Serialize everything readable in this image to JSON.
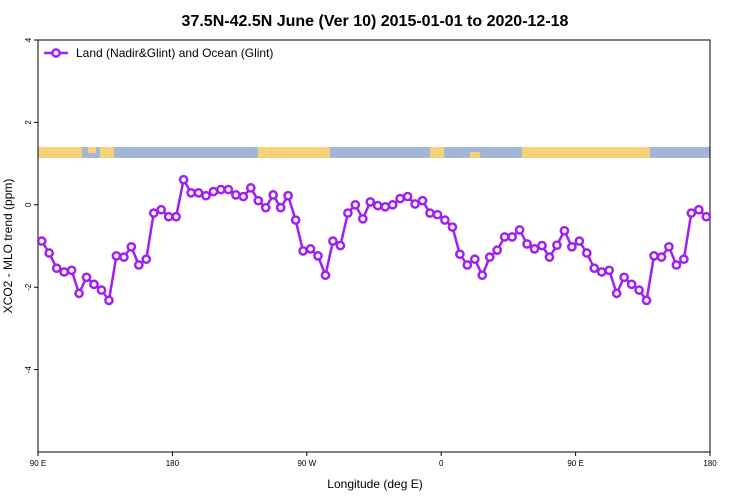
{
  "chart_data": {
    "type": "line",
    "title": "37.5N-42.5N June (Ver 10)   2015-01-01 to 2020-12-18",
    "x_label": "Longitude (deg E)",
    "y_label": "XCO2 - MLO trend (ppm)",
    "xlim": [
      90,
      540
    ],
    "xticks": [
      {
        "value": 90,
        "label": "90 E"
      },
      180,
      {
        "value": 270,
        "label": "90 W"
      },
      {
        "value": 360,
        "label": "0"
      },
      {
        "value": 450,
        "label": "90 E"
      },
      {
        "value": 540,
        "label": "180"
      }
    ],
    "ylim": [
      -6,
      4
    ],
    "yticks": [
      4,
      2,
      0,
      -2,
      -4
    ],
    "legend": "top-left",
    "x": [
      92.5,
      97.5,
      102.5,
      107.5,
      112.5,
      117.5,
      122.5,
      127.5,
      132.5,
      137.5,
      142.5,
      147.5,
      152.5,
      157.5,
      162.5,
      167.5,
      172.5,
      177.5,
      182.5,
      187.5,
      192.5,
      197.5,
      202.5,
      207.5,
      212.5,
      217.5,
      222.5,
      227.5,
      232.5,
      237.5,
      242.5,
      247.5,
      252.5,
      257.5,
      262.5,
      267.5,
      272.5,
      277.5,
      282.5,
      287.5,
      292.5,
      297.5,
      302.5,
      307.5,
      312.5,
      317.5,
      322.5,
      327.5,
      332.5,
      337.5,
      342.5,
      347.5,
      352.5,
      357.5,
      362.5,
      367.5,
      372.5,
      377.5,
      382.5,
      387.5,
      392.5,
      397.5,
      402.5,
      407.5,
      412.5,
      417.5,
      422.5,
      427.5,
      432.5,
      437.5,
      442.5,
      447.5,
      452.5,
      457.5,
      462.5,
      467.5,
      472.5,
      477.5,
      482.5,
      487.5,
      492.5,
      497.5,
      502.5,
      507.5,
      512.5,
      517.5,
      522.5,
      527.5,
      532.5,
      537.5
    ],
    "series": [
      {
        "name": "Land (Nadir&Glint) and Ocean (Glint)",
        "color": "#a020f0",
        "values": [
          -0.88,
          -1.17,
          -1.54,
          -1.63,
          -1.59,
          -2.15,
          -1.76,
          -1.93,
          -2.07,
          -2.32,
          -1.24,
          -1.27,
          -1.02,
          -1.46,
          -1.32,
          -0.2,
          -0.12,
          -0.29,
          -0.29,
          0.61,
          0.29,
          0.29,
          0.22,
          0.32,
          0.37,
          0.37,
          0.24,
          0.2,
          0.41,
          0.1,
          -0.07,
          0.24,
          -0.07,
          0.22,
          -0.37,
          -1.12,
          -1.07,
          -1.24,
          -1.71,
          -0.88,
          -0.99,
          -0.2,
          0,
          -0.34,
          0.07,
          -0.02,
          -0.05,
          0,
          0.15,
          0.2,
          0.02,
          0.1,
          -0.2,
          -0.24,
          -0.37,
          -0.54,
          -1.2,
          -1.46,
          -1.32,
          -1.71,
          -1.27,
          -1.1,
          -0.78,
          -0.78,
          -0.61,
          -0.95,
          -1.07,
          -0.99,
          -1.27,
          -0.98,
          -0.63,
          -1.02,
          -0.88,
          -1.17,
          -1.54,
          -1.63,
          -1.59,
          -2.15,
          -1.76,
          -1.93,
          -2.07,
          -2.32,
          -1.24,
          -1.27,
          -1.02,
          -1.46,
          -1.32,
          -0.2,
          -0.12,
          -0.29
        ]
      }
    ]
  }
}
